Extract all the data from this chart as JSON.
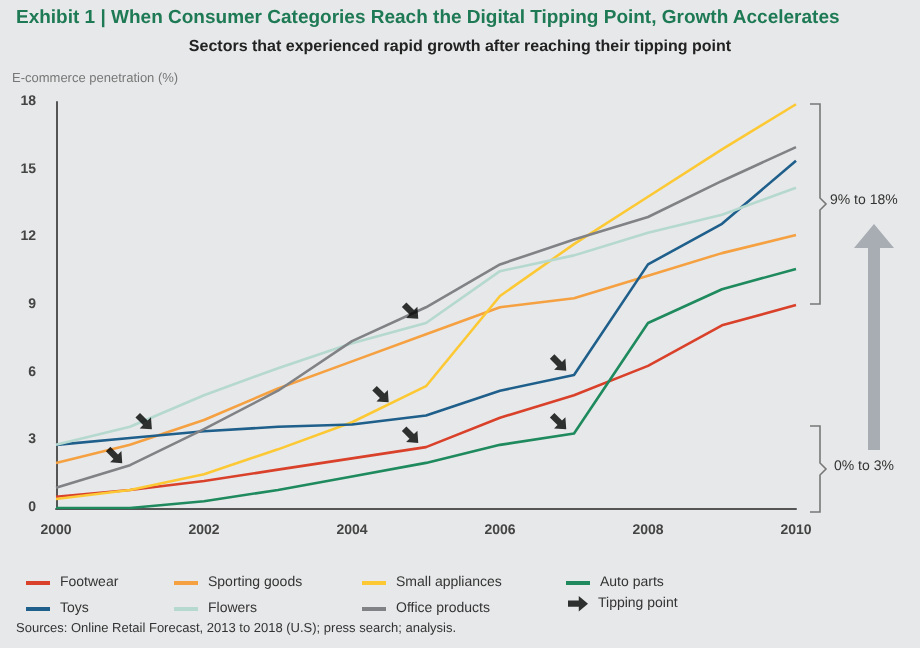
{
  "chart_data": {
    "type": "line",
    "title": "Exhibit 1 | When Consumer Categories Reach the Digital Tipping Point, Growth Accelerates",
    "subtitle": "Sectors that experienced rapid growth after reaching their tipping point",
    "ylabel": "E-commerce penetration (%)",
    "x": [
      2000,
      2001,
      2002,
      2003,
      2004,
      2005,
      2006,
      2007,
      2008,
      2009,
      2010
    ],
    "series": [
      {
        "name": "Footwear",
        "color": "#d9412b",
        "values": [
          0.5,
          0.8,
          1.2,
          1.7,
          2.2,
          2.7,
          4.0,
          5.0,
          6.3,
          8.1,
          9.0
        ]
      },
      {
        "name": "Sporting goods",
        "color": "#f5a142",
        "values": [
          2.0,
          2.8,
          3.9,
          5.3,
          6.5,
          7.7,
          8.9,
          9.3,
          10.3,
          11.3,
          12.1
        ]
      },
      {
        "name": "Small appliances",
        "color": "#fcc935",
        "values": [
          0.4,
          0.8,
          1.5,
          2.6,
          3.8,
          5.4,
          9.4,
          11.7,
          13.8,
          15.9,
          17.9
        ]
      },
      {
        "name": "Auto parts",
        "color": "#1e8a5e",
        "values": [
          0,
          0,
          0.3,
          0.8,
          1.4,
          2.0,
          2.8,
          3.3,
          8.2,
          9.7,
          10.6
        ]
      },
      {
        "name": "Toys",
        "color": "#1f5f8b",
        "values": [
          2.8,
          3.1,
          3.4,
          3.6,
          3.7,
          4.1,
          5.2,
          5.9,
          10.8,
          12.6,
          15.4
        ]
      },
      {
        "name": "Flowers",
        "color": "#b5d8cf",
        "values": [
          2.8,
          3.6,
          5.0,
          6.2,
          7.3,
          8.2,
          10.5,
          11.2,
          12.2,
          13.0,
          14.2
        ]
      },
      {
        "name": "Office products",
        "color": "#808285",
        "values": [
          0.9,
          1.9,
          3.5,
          5.2,
          7.4,
          8.9,
          10.8,
          11.9,
          12.9,
          14.5,
          16.0
        ]
      },
      {
        "name": "Tipping point",
        "type": "scatter",
        "color": "#000000",
        "x": [
          2000.8,
          2001.2,
          2004.4,
          2004.8,
          2004.8,
          2006.8,
          2006.8
        ],
        "values": [
          2.3,
          3.8,
          5.0,
          8.7,
          3.2,
          6.4,
          3.8
        ]
      }
    ],
    "xlim": [
      2000,
      2010
    ],
    "xticks": [
      2000,
      2002,
      2004,
      2006,
      2008,
      2010
    ],
    "ylim": [
      0,
      18
    ],
    "yticks": [
      0,
      3,
      6,
      9,
      12,
      15,
      18
    ],
    "grid": false,
    "legend": "bottom",
    "annotations": [
      "9% to 18%",
      "0% to 3%",
      "Sources: Online Retail Forecast, 2013 to 2018 (U.S); press search; analysis."
    ]
  }
}
